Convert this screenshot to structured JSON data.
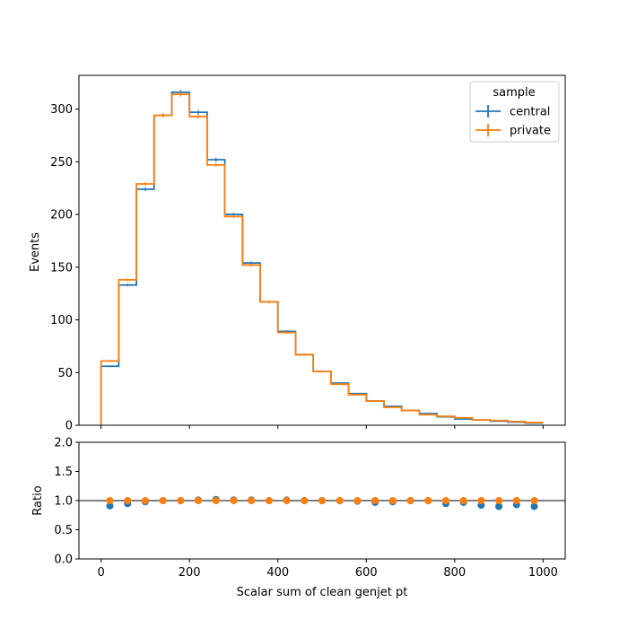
{
  "chart_data": [
    {
      "type": "step",
      "panel": "main",
      "xlabel": "",
      "ylabel": "Events",
      "xlim": [
        -50,
        1050
      ],
      "ylim": [
        0,
        332
      ],
      "xticks": [
        0,
        200,
        400,
        600,
        800,
        1000
      ],
      "show_xtick_labels": false,
      "yticks": [
        0,
        50,
        100,
        150,
        200,
        250,
        300
      ],
      "grid": false,
      "legend": {
        "title": "sample",
        "placement": "top-right"
      },
      "bin_edges": [
        0,
        40,
        80,
        120,
        160,
        200,
        240,
        280,
        320,
        360,
        400,
        440,
        480,
        520,
        560,
        600,
        640,
        680,
        720,
        760,
        800,
        840,
        880,
        920,
        960,
        1000
      ],
      "series": [
        {
          "name": "central",
          "color": "#1f77b4",
          "values": [
            56,
            133,
            224,
            294,
            316,
            297,
            252,
            200,
            154,
            117,
            89,
            67,
            51,
            40,
            30,
            23,
            18,
            14,
            11,
            8,
            6,
            5,
            4,
            3,
            2
          ]
        },
        {
          "name": "private",
          "color": "#ff7f0e",
          "values": [
            61,
            138,
            229,
            294,
            314,
            293,
            247,
            198,
            152,
            117,
            88,
            67,
            51,
            39,
            29,
            23,
            17,
            14,
            10,
            8.5,
            7,
            5,
            4.5,
            3.5,
            2.5
          ]
        }
      ]
    },
    {
      "type": "scatter",
      "panel": "ratio",
      "xlabel": "Scalar sum of clean genjet pt",
      "ylabel": "Ratio",
      "xlim": [
        -50,
        1050
      ],
      "ylim": [
        0,
        2
      ],
      "xticks": [
        0,
        200,
        400,
        600,
        800,
        1000
      ],
      "yticks": [
        0.0,
        0.5,
        1.0,
        1.5,
        2.0
      ],
      "reference_line": 1.0,
      "grid": false,
      "x": [
        20,
        60,
        100,
        140,
        180,
        220,
        260,
        300,
        340,
        380,
        420,
        460,
        500,
        540,
        580,
        620,
        660,
        700,
        740,
        780,
        820,
        860,
        900,
        940,
        980
      ],
      "series": [
        {
          "name": "central",
          "color": "#1f77b4",
          "values": [
            0.91,
            0.95,
            0.98,
            1.0,
            1.0,
            1.01,
            1.02,
            1.01,
            1.01,
            1.0,
            1.01,
            1.0,
            1.0,
            1.0,
            0.99,
            0.97,
            0.98,
            1.0,
            1.0,
            0.95,
            0.97,
            0.92,
            0.9,
            0.93,
            0.9
          ]
        },
        {
          "name": "private",
          "color": "#ff7f0e",
          "values": [
            1,
            1,
            1,
            1,
            1,
            1,
            1,
            1,
            1,
            1,
            1,
            1,
            1,
            1,
            1,
            1,
            1,
            1,
            1,
            1,
            1,
            1,
            1,
            1,
            1
          ]
        }
      ]
    }
  ]
}
